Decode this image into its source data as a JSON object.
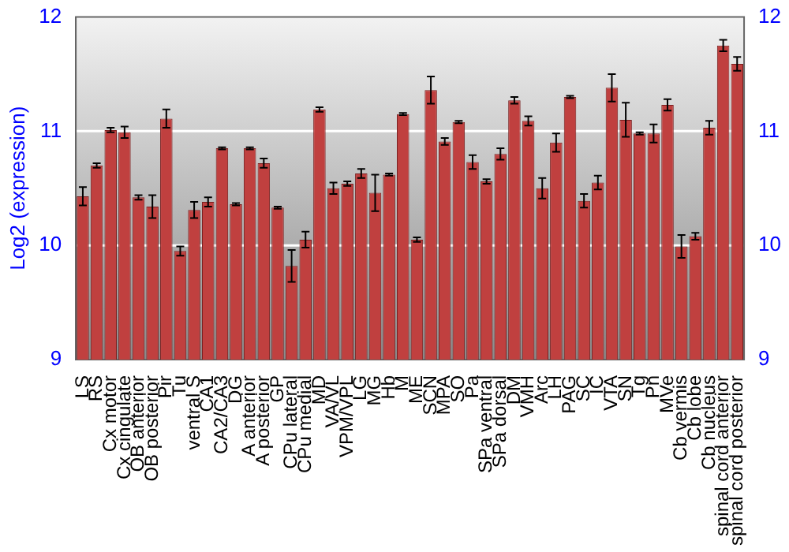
{
  "chart_data": {
    "type": "bar",
    "ylabel": "Log2 (expression)",
    "categories": [
      "LS",
      "RS",
      "Cx motor",
      "Cx cingulate",
      "OB anterior",
      "OB posterior",
      "Pir",
      "Tu",
      "ventral S",
      "CA1",
      "CA2/CA3",
      "DG",
      "A anterior",
      "A posterior",
      "GP",
      "CPu lateral",
      "CPu medial",
      "MD",
      "VA/VL",
      "VPM/VPL",
      "LG",
      "MG",
      "Hb",
      "M",
      "ME",
      "SCN",
      "MPA",
      "SO",
      "Pa",
      "SPa ventral",
      "SPa dorsal",
      "DM",
      "VMH",
      "Arc",
      "LH",
      "PAG",
      "SC",
      "IC",
      "VTA",
      "SN",
      "Tg",
      "Pn",
      "MVe",
      "Cb vermis",
      "Cb lobe",
      "Cb nucleus",
      "spinal cord anterior",
      "spinal cord posterior"
    ],
    "values": [
      10.43,
      10.7,
      11.01,
      10.99,
      10.42,
      10.34,
      11.11,
      9.95,
      10.31,
      10.38,
      10.85,
      10.36,
      10.85,
      10.72,
      10.33,
      9.82,
      10.05,
      11.19,
      10.5,
      10.54,
      10.63,
      10.46,
      10.62,
      11.15,
      10.05,
      11.36,
      10.91,
      11.08,
      10.73,
      10.56,
      10.8,
      11.27,
      11.09,
      10.5,
      10.9,
      11.3,
      10.39,
      10.55,
      11.38,
      11.1,
      10.98,
      10.98,
      11.23,
      9.99,
      10.08,
      11.03,
      11.75,
      11.59
    ],
    "errors": [
      0.08,
      0.02,
      0.02,
      0.05,
      0.02,
      0.1,
      0.08,
      0.04,
      0.07,
      0.04,
      0.01,
      0.01,
      0.01,
      0.04,
      0.01,
      0.14,
      0.07,
      0.02,
      0.05,
      0.02,
      0.04,
      0.16,
      0.01,
      0.01,
      0.02,
      0.12,
      0.03,
      0.01,
      0.06,
      0.02,
      0.05,
      0.03,
      0.04,
      0.09,
      0.08,
      0.01,
      0.06,
      0.06,
      0.12,
      0.15,
      0.01,
      0.08,
      0.05,
      0.1,
      0.03,
      0.06,
      0.05,
      0.06
    ],
    "color": "#c0403f",
    "ylim": [
      9,
      12
    ],
    "yticks": [
      9,
      10,
      11,
      12
    ],
    "y2lim": [
      9,
      12
    ],
    "y2ticks": [
      9,
      10,
      11,
      12
    ],
    "grid": "y",
    "legend": false
  }
}
